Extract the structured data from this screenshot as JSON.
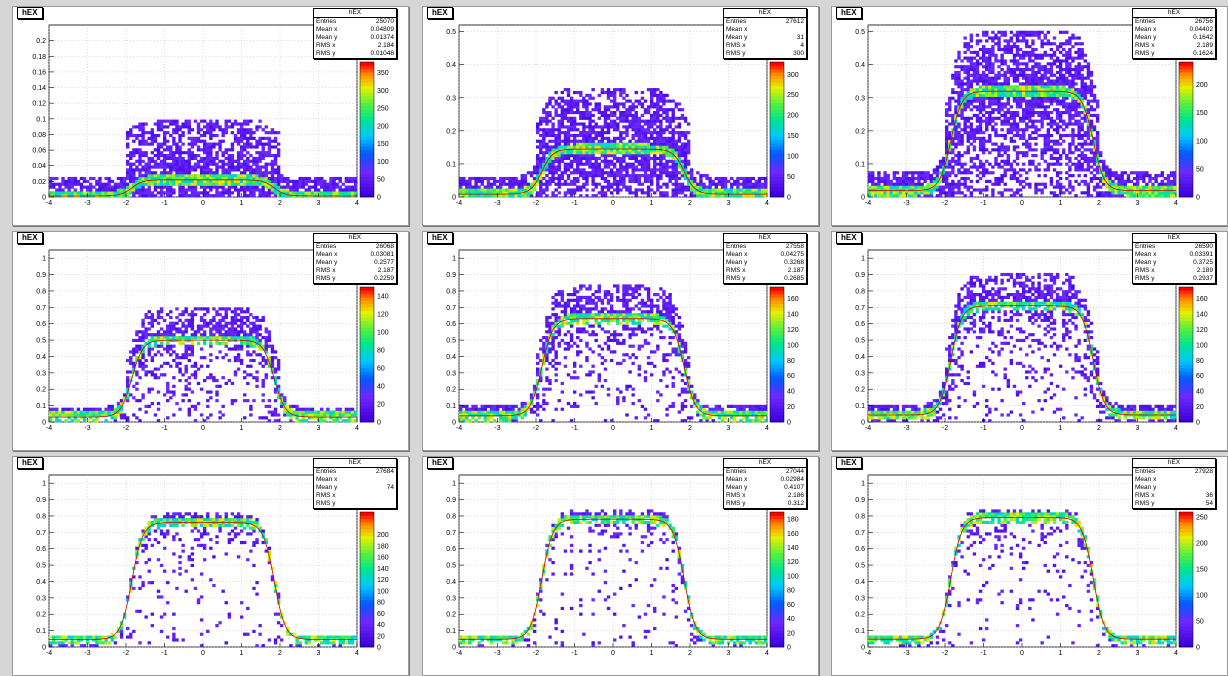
{
  "chart_data": [
    {
      "type": "heatmap",
      "title": "hEX",
      "ylim": [
        0,
        0.22
      ],
      "yticks": [
        "0",
        "0.02",
        "0.04",
        "0.06",
        "0.08",
        "0.1",
        "0.12",
        "0.14",
        "0.16",
        "0.18",
        "0.2"
      ],
      "xlim": [
        -4,
        4
      ],
      "xticks": [
        "-4",
        "-3",
        "-2",
        "-1",
        "0",
        "1",
        "2",
        "3",
        "4"
      ],
      "zticks": [
        "0",
        "50",
        "100",
        "150",
        "200",
        "250",
        "300",
        "350"
      ],
      "zmax": 380,
      "profile_peak": 0.022,
      "stats": {
        "title": "hEX",
        "rows": [
          {
            "label": "Entries",
            "value": "25070"
          },
          {
            "label": "Mean x",
            "value": "0.04809"
          },
          {
            "label": "Mean y",
            "value": "0.01374"
          },
          {
            "label": "RMS x",
            "value": "2.184"
          },
          {
            "label": "RMS y",
            "value": "0.01048"
          }
        ]
      }
    },
    {
      "type": "heatmap",
      "title": "hEX",
      "ylim": [
        0,
        0.52
      ],
      "yticks": [
        "0",
        "0.1",
        "0.2",
        "0.3",
        "0.4",
        "0.5"
      ],
      "xlim": [
        -4,
        4
      ],
      "xticks": [
        "-4",
        "-3",
        "-2",
        "-1",
        "0",
        "1",
        "2",
        "3",
        "4"
      ],
      "zticks": [
        "0",
        "50",
        "100",
        "150",
        "200",
        "250",
        "300"
      ],
      "zmax": 330,
      "profile_peak": 0.145,
      "stats": {
        "title": "hEX",
        "rows": [
          {
            "label": "Entries",
            "value": "27612"
          },
          {
            "label": "Mean x",
            "value": ""
          },
          {
            "label": "Mean y",
            "value": "31"
          },
          {
            "label": "RMS x",
            "value": "4"
          },
          {
            "label": "RMS y",
            "value": "300"
          }
        ]
      }
    },
    {
      "type": "heatmap",
      "title": "hEX",
      "ylim": [
        0,
        0.52
      ],
      "yticks": [
        "0",
        "0.1",
        "0.2",
        "0.3",
        "0.4",
        "0.5"
      ],
      "xlim": [
        -4,
        4
      ],
      "xticks": [
        "-4",
        "-3",
        "-2",
        "-1",
        "0",
        "1",
        "2",
        "3",
        "4"
      ],
      "zticks": [
        "0",
        "50",
        "100",
        "150",
        "200"
      ],
      "zmax": 240,
      "profile_peak": 0.32,
      "stats": {
        "title": "hEX",
        "rows": [
          {
            "label": "Entries",
            "value": "26756"
          },
          {
            "label": "Mean x",
            "value": "0.04402"
          },
          {
            "label": "Mean y",
            "value": "0.1642"
          },
          {
            "label": "RMS x",
            "value": "2.189"
          },
          {
            "label": "RMS y",
            "value": "0.1624"
          }
        ]
      }
    },
    {
      "type": "heatmap",
      "title": "hEX",
      "ylim": [
        0,
        1.05
      ],
      "yticks": [
        "0",
        "0.1",
        "0.2",
        "0.3",
        "0.4",
        "0.5",
        "0.6",
        "0.7",
        "0.8",
        "0.9",
        "1"
      ],
      "xlim": [
        -4,
        4
      ],
      "xticks": [
        "-4",
        "-3",
        "-2",
        "-1",
        "0",
        "1",
        "2",
        "3",
        "4"
      ],
      "zticks": [
        "0",
        "20",
        "40",
        "60",
        "80",
        "100",
        "120",
        "140"
      ],
      "zmax": 150,
      "profile_peak": 0.5,
      "stats": {
        "title": "hEX",
        "rows": [
          {
            "label": "Entries",
            "value": "26068"
          },
          {
            "label": "Mean x",
            "value": "0.03081"
          },
          {
            "label": "Mean y",
            "value": "0.2577"
          },
          {
            "label": "RMS x",
            "value": "2.187"
          },
          {
            "label": "RMS y",
            "value": "0.2259"
          }
        ]
      }
    },
    {
      "type": "heatmap",
      "title": "hEX",
      "ylim": [
        0,
        1.05
      ],
      "yticks": [
        "0",
        "0.1",
        "0.2",
        "0.3",
        "0.4",
        "0.5",
        "0.6",
        "0.7",
        "0.8",
        "0.9",
        "1"
      ],
      "xlim": [
        -4,
        4
      ],
      "xticks": [
        "-4",
        "-3",
        "-2",
        "-1",
        "0",
        "1",
        "2",
        "3",
        "4"
      ],
      "zticks": [
        "0",
        "20",
        "40",
        "60",
        "80",
        "100",
        "120",
        "140",
        "160"
      ],
      "zmax": 175,
      "profile_peak": 0.63,
      "stats": {
        "title": "hEX",
        "rows": [
          {
            "label": "Entries",
            "value": "27558"
          },
          {
            "label": "Mean x",
            "value": "0.04275"
          },
          {
            "label": "Mean y",
            "value": "0.3268"
          },
          {
            "label": "RMS x",
            "value": "2.187"
          },
          {
            "label": "RMS y",
            "value": "0.2685"
          }
        ]
      }
    },
    {
      "type": "heatmap",
      "title": "hEX",
      "ylim": [
        0,
        1.05
      ],
      "yticks": [
        "0",
        "0.1",
        "0.2",
        "0.3",
        "0.4",
        "0.5",
        "0.6",
        "0.7",
        "0.8",
        "0.9",
        "1"
      ],
      "xlim": [
        -4,
        4
      ],
      "xticks": [
        "-4",
        "-3",
        "-2",
        "-1",
        "0",
        "1",
        "2",
        "3",
        "4"
      ],
      "zticks": [
        "0",
        "20",
        "40",
        "60",
        "80",
        "100",
        "120",
        "140",
        "160"
      ],
      "zmax": 175,
      "profile_peak": 0.71,
      "stats": {
        "title": "hEX",
        "rows": [
          {
            "label": "Entries",
            "value": "26590"
          },
          {
            "label": "Mean x",
            "value": "0.03391"
          },
          {
            "label": "Mean y",
            "value": "0.3725"
          },
          {
            "label": "RMS x",
            "value": "2.189"
          },
          {
            "label": "RMS y",
            "value": "0.2937"
          }
        ]
      }
    },
    {
      "type": "heatmap",
      "title": "hEX",
      "ylim": [
        0,
        1.05
      ],
      "yticks": [
        "0",
        "0.1",
        "0.2",
        "0.3",
        "0.4",
        "0.5",
        "0.6",
        "0.7",
        "0.8",
        "0.9",
        "1"
      ],
      "xlim": [
        -4,
        4
      ],
      "xticks": [
        "-4",
        "-3",
        "-2",
        "-1",
        "0",
        "1",
        "2",
        "3",
        "4"
      ],
      "zticks": [
        "0",
        "20",
        "40",
        "60",
        "80",
        "100",
        "120",
        "140",
        "160",
        "180",
        "200"
      ],
      "zmax": 240,
      "profile_peak": 0.76,
      "stats": {
        "title": "hEX",
        "rows": [
          {
            "label": "Entries",
            "value": "27684"
          },
          {
            "label": "Mean x",
            "value": ""
          },
          {
            "label": "Mean y",
            "value": "74"
          },
          {
            "label": "RMS x",
            "value": ""
          },
          {
            "label": "RMS y",
            "value": ""
          }
        ]
      }
    },
    {
      "type": "heatmap",
      "title": "hEX",
      "ylim": [
        0,
        1.05
      ],
      "yticks": [
        "0",
        "0.1",
        "0.2",
        "0.3",
        "0.4",
        "0.5",
        "0.6",
        "0.7",
        "0.8",
        "0.9",
        "1"
      ],
      "xlim": [
        -4,
        4
      ],
      "xticks": [
        "-4",
        "-3",
        "-2",
        "-1",
        "0",
        "1",
        "2",
        "3",
        "4"
      ],
      "zticks": [
        "0",
        "20",
        "40",
        "60",
        "80",
        "100",
        "120",
        "140",
        "160",
        "180"
      ],
      "zmax": 190,
      "profile_peak": 0.78,
      "stats": {
        "title": "hEX",
        "rows": [
          {
            "label": "Entries",
            "value": "27044"
          },
          {
            "label": "Mean x",
            "value": "0.02984"
          },
          {
            "label": "Mean y",
            "value": "0.4107"
          },
          {
            "label": "RMS x",
            "value": "2.186"
          },
          {
            "label": "RMS y",
            "value": "0.312"
          }
        ]
      }
    },
    {
      "type": "heatmap",
      "title": "hEX",
      "ylim": [
        0,
        1.05
      ],
      "yticks": [
        "0",
        "0.1",
        "0.2",
        "0.3",
        "0.4",
        "0.5",
        "0.6",
        "0.7",
        "0.8",
        "0.9",
        "1"
      ],
      "xlim": [
        -4,
        4
      ],
      "xticks": [
        "-4",
        "-3",
        "-2",
        "-1",
        "0",
        "1",
        "2",
        "3",
        "4"
      ],
      "zticks": [
        "0",
        "50",
        "100",
        "150",
        "200",
        "250"
      ],
      "zmax": 260,
      "profile_peak": 0.79,
      "stats": {
        "title": "hEX",
        "rows": [
          {
            "label": "Entries",
            "value": "27928"
          },
          {
            "label": "Mean x",
            "value": ""
          },
          {
            "label": "Mean y",
            "value": ""
          },
          {
            "label": "RMS x",
            "value": "36"
          },
          {
            "label": "RMS y",
            "value": "54"
          }
        ]
      }
    }
  ]
}
